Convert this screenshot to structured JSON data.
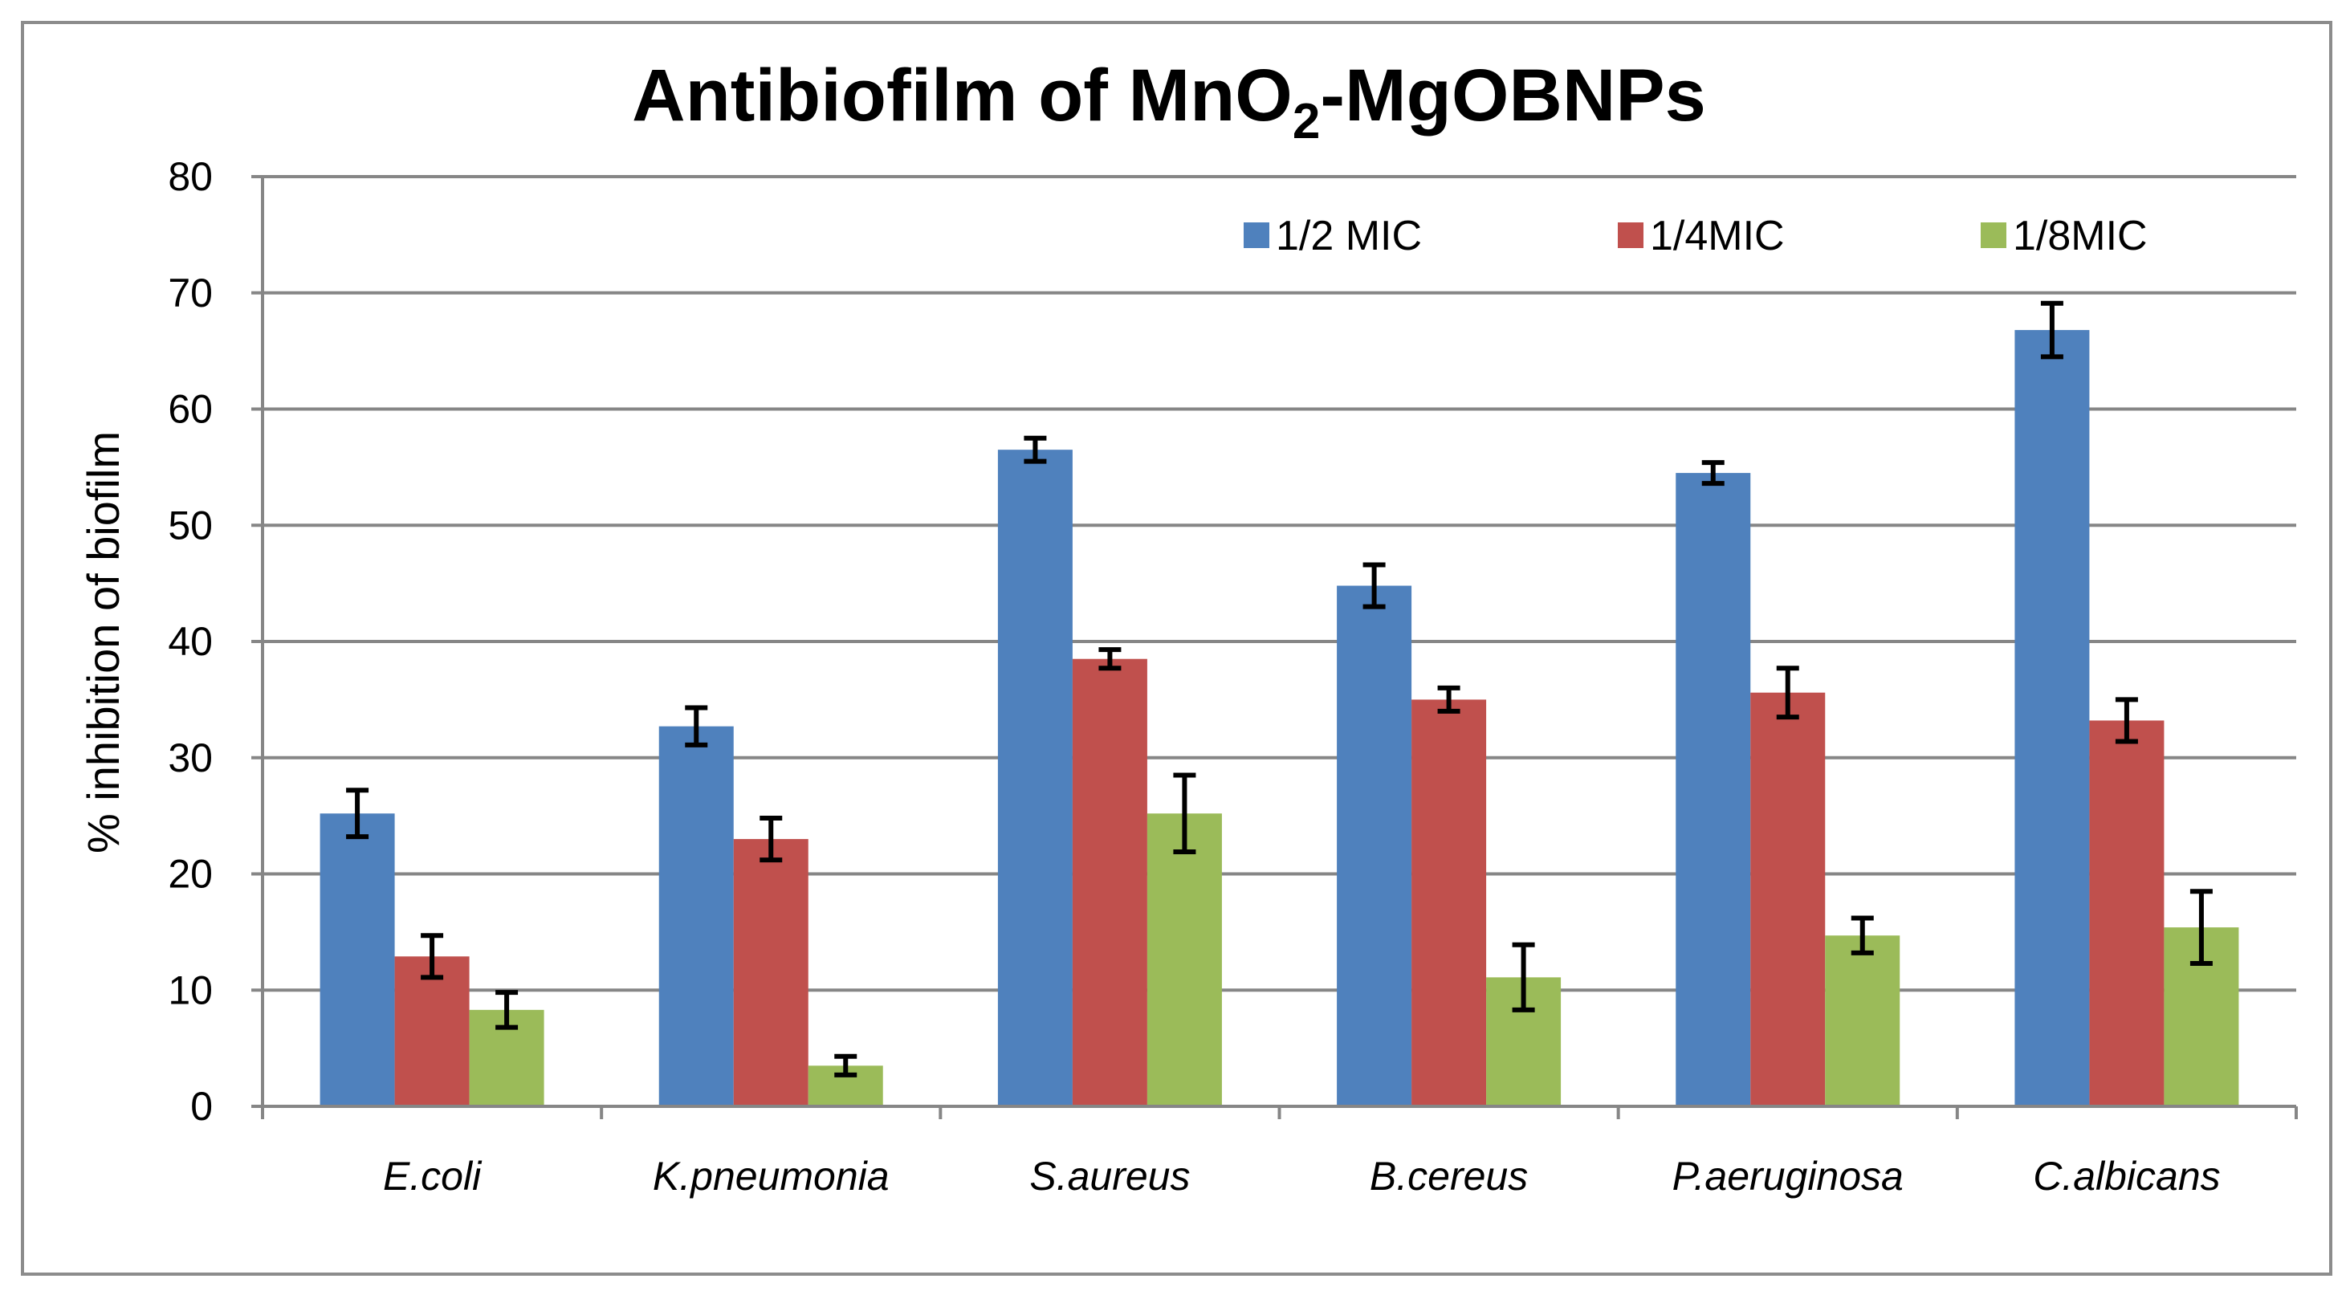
{
  "chart_data": {
    "type": "bar",
    "title": "Antibiofilm of MnO2-MgOBNPs",
    "title_parts": {
      "before": "Antibiofilm of MnO",
      "subscript": "2",
      "after": "-MgOBNPs"
    },
    "xlabel": "",
    "ylabel": "% inhibition of biofilm",
    "ylim": [
      0,
      80
    ],
    "yticks": [
      0,
      10,
      20,
      30,
      40,
      50,
      60,
      70,
      80
    ],
    "grid": true,
    "legend_position": "top-right",
    "categories": [
      "E.coli",
      "K.pneumonia",
      "S.aureus",
      "B.cereus",
      "P.aeruginosa",
      "C.albicans"
    ],
    "series": [
      {
        "name": "1/2 MIC",
        "color": "#4f81bd",
        "values": [
          25.2,
          32.7,
          56.5,
          44.8,
          54.5,
          66.8
        ],
        "errors": [
          2.0,
          1.6,
          1.0,
          1.8,
          0.9,
          2.3
        ]
      },
      {
        "name": "1/4MIC",
        "color": "#c0504d",
        "values": [
          12.9,
          23.0,
          38.5,
          35.0,
          35.6,
          33.2
        ],
        "errors": [
          1.8,
          1.8,
          0.8,
          1.0,
          2.1,
          1.8
        ]
      },
      {
        "name": "1/8MIC",
        "color": "#9bbb59",
        "values": [
          8.3,
          3.5,
          25.2,
          11.1,
          14.7,
          15.4
        ],
        "errors": [
          1.5,
          0.8,
          3.3,
          2.8,
          1.5,
          3.1
        ]
      }
    ]
  }
}
